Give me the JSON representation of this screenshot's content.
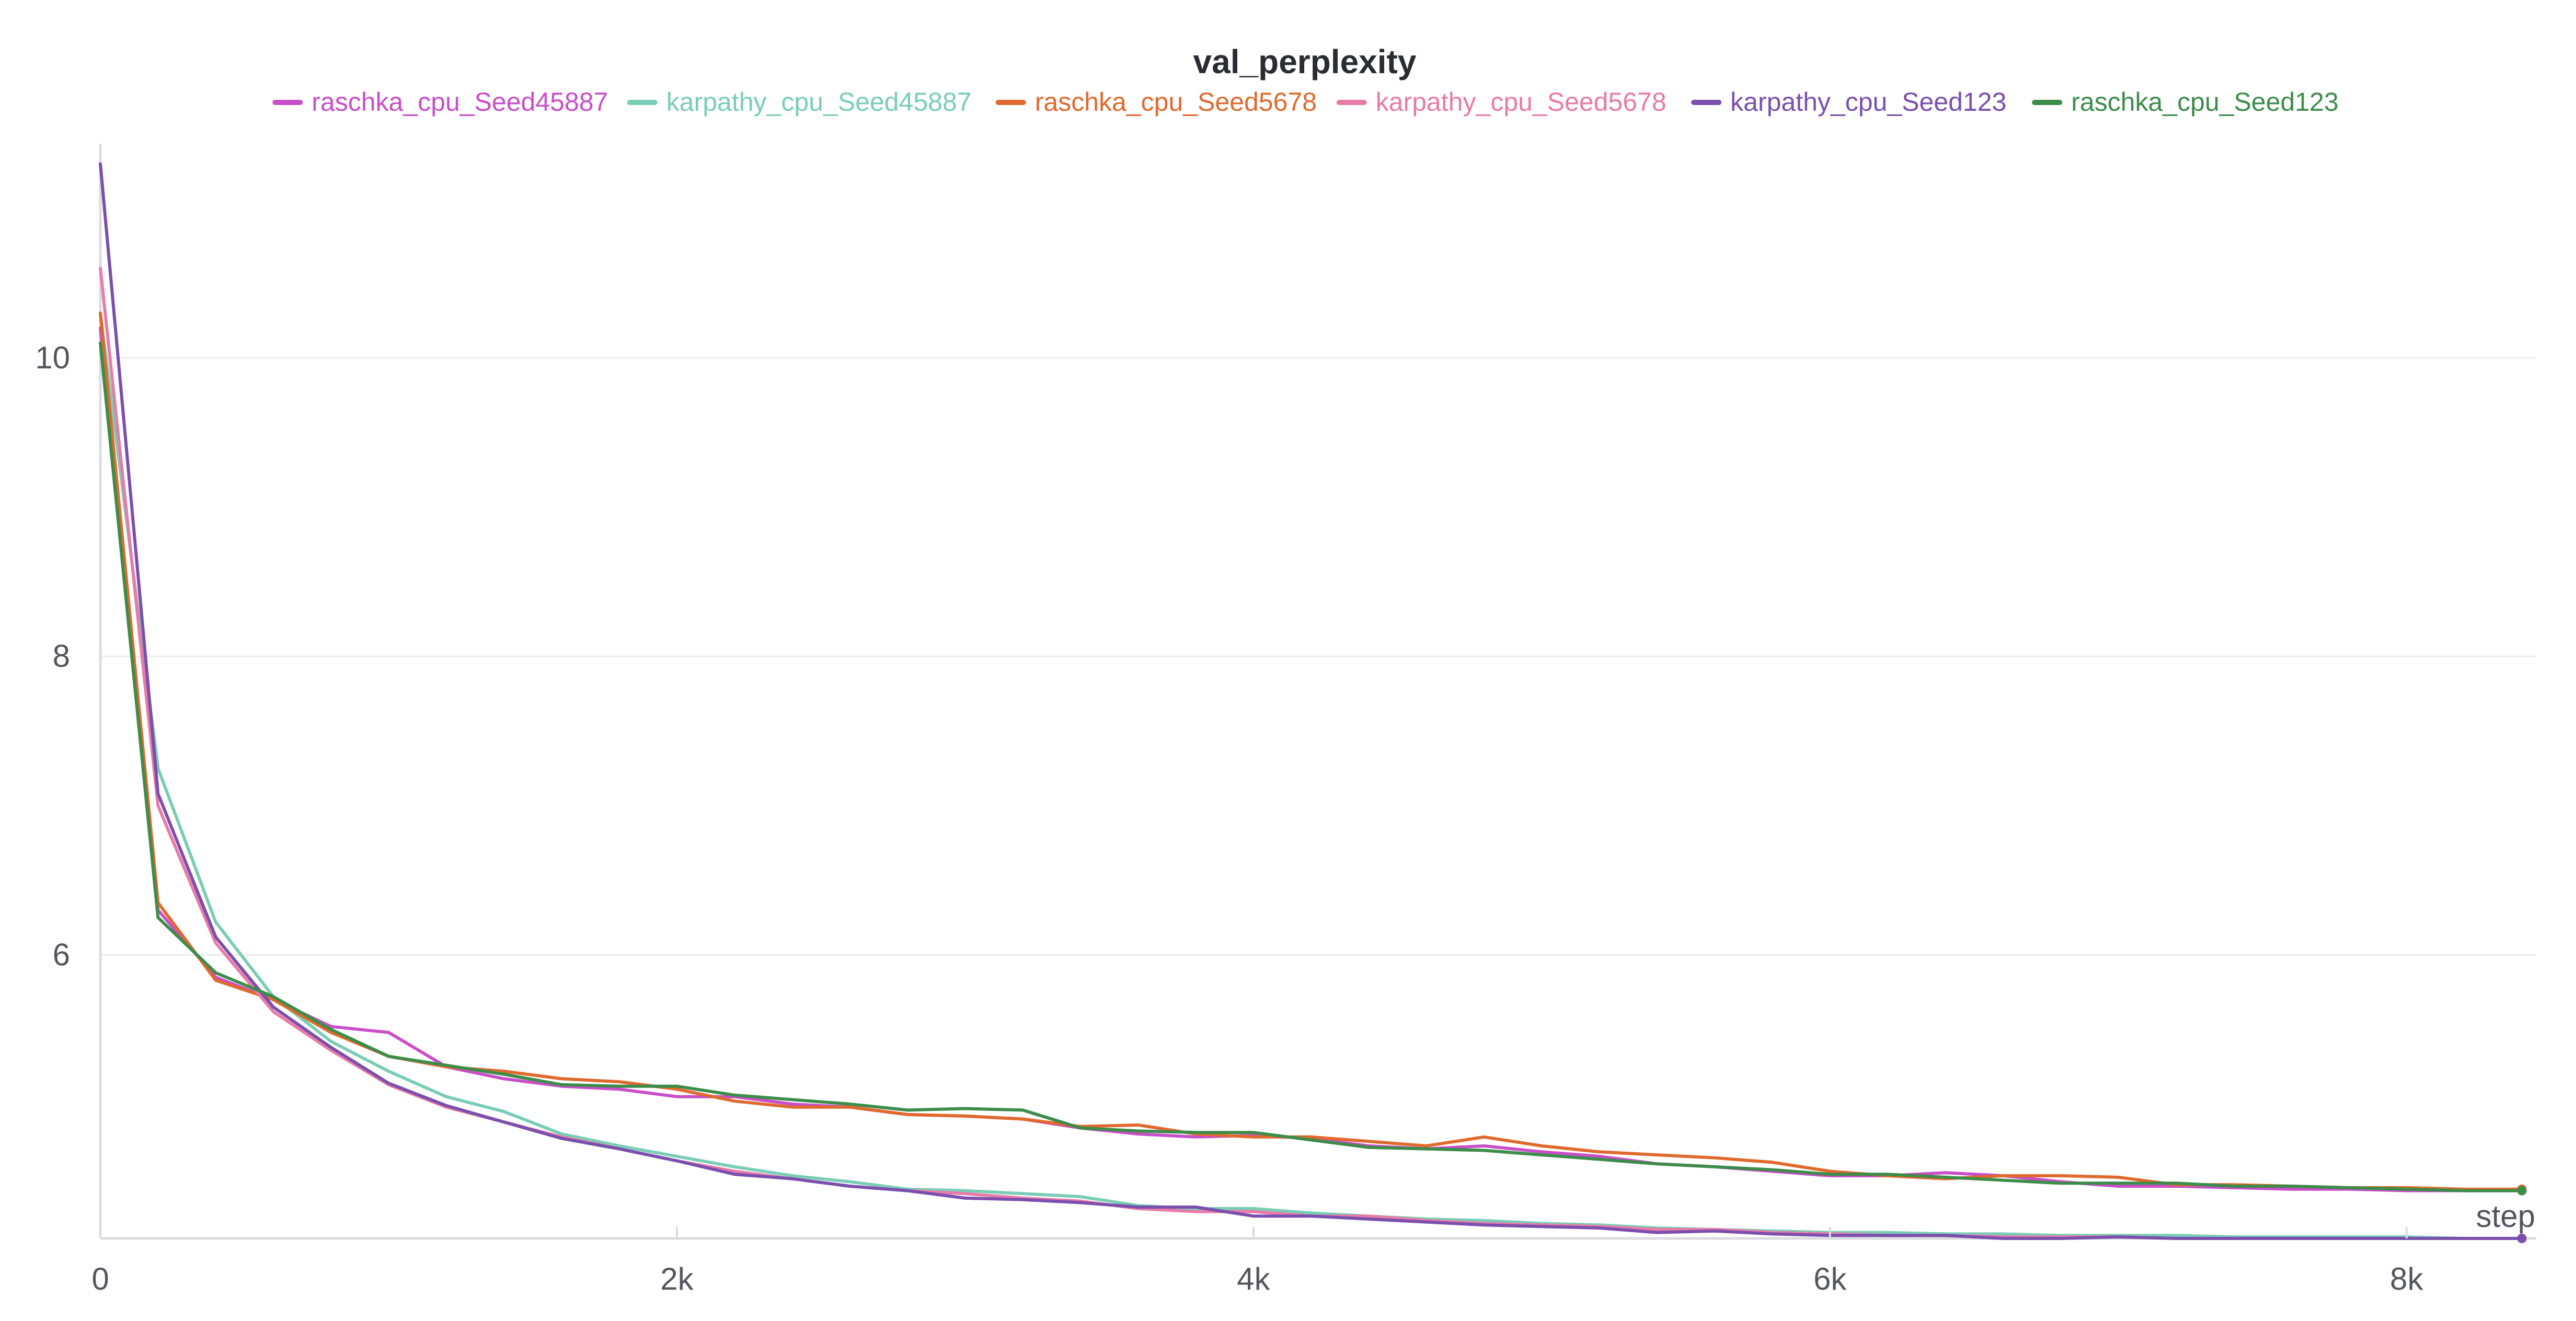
{
  "chart_data": {
    "type": "line",
    "title": "val_perplexity",
    "xlabel": "step",
    "ylabel": "",
    "xlim": [
      0,
      8450
    ],
    "ylim": [
      4.1,
      11.4
    ],
    "x_ticks": [
      0,
      2000,
      4000,
      6000,
      8000
    ],
    "x_tick_labels": [
      "0",
      "2k",
      "4k",
      "6k",
      "8k"
    ],
    "y_ticks": [
      6,
      8,
      10
    ],
    "y_tick_labels": [
      "6",
      "8",
      "10"
    ],
    "grid": true,
    "legend_position": "top",
    "series": [
      {
        "name": "raschka_cpu_Seed45887",
        "color": "#c94ec9",
        "x": [
          0,
          200,
          400,
          600,
          800,
          1000,
          1200,
          1400,
          1600,
          1800,
          2000,
          2200,
          2400,
          2600,
          2800,
          3000,
          3200,
          3400,
          3600,
          3800,
          4000,
          4200,
          4400,
          4600,
          4800,
          5000,
          5200,
          5400,
          5600,
          5800,
          6000,
          6200,
          6400,
          6600,
          6800,
          7000,
          7200,
          7400,
          7600,
          7800,
          8000,
          8200,
          8400
        ],
        "values": [
          10.2,
          6.3,
          5.85,
          5.7,
          5.52,
          5.48,
          5.25,
          5.17,
          5.12,
          5.1,
          5.05,
          5.05,
          5.0,
          4.98,
          4.93,
          4.92,
          4.9,
          4.84,
          4.8,
          4.78,
          4.79,
          4.77,
          4.72,
          4.7,
          4.72,
          4.68,
          4.65,
          4.6,
          4.58,
          4.55,
          4.52,
          4.52,
          4.54,
          4.52,
          4.48,
          4.45,
          4.45,
          4.44,
          4.43,
          4.43,
          4.42,
          4.42,
          4.42
        ]
      },
      {
        "name": "karpathy_cpu_Seed45887",
        "color": "#79cdb6",
        "x": [
          0,
          200,
          400,
          600,
          800,
          1000,
          1200,
          1400,
          1600,
          1800,
          2000,
          2200,
          2400,
          2600,
          2800,
          3000,
          3200,
          3400,
          3600,
          3800,
          4000,
          4200,
          4400,
          4600,
          4800,
          5000,
          5200,
          5400,
          5600,
          5800,
          6000,
          6200,
          6400,
          6600,
          6800,
          7000,
          7200,
          7400,
          7600,
          7800,
          8000,
          8200,
          8400
        ],
        "values": [
          10.3,
          7.25,
          6.22,
          5.72,
          5.42,
          5.22,
          5.05,
          4.95,
          4.8,
          4.72,
          4.65,
          4.58,
          4.52,
          4.48,
          4.43,
          4.42,
          4.4,
          4.38,
          4.32,
          4.3,
          4.3,
          4.27,
          4.25,
          4.23,
          4.22,
          4.2,
          4.19,
          4.17,
          4.16,
          4.15,
          4.14,
          4.14,
          4.13,
          4.13,
          4.12,
          4.12,
          4.12,
          4.11,
          4.11,
          4.11,
          4.11,
          4.1,
          4.1
        ]
      },
      {
        "name": "raschka_cpu_Seed5678",
        "color": "#e0692d",
        "x": [
          0,
          200,
          400,
          600,
          800,
          1000,
          1200,
          1400,
          1600,
          1800,
          2000,
          2200,
          2400,
          2600,
          2800,
          3000,
          3200,
          3400,
          3600,
          3800,
          4000,
          4200,
          4400,
          4600,
          4800,
          5000,
          5200,
          5400,
          5600,
          5800,
          6000,
          6200,
          6400,
          6600,
          6800,
          7000,
          7200,
          7400,
          7600,
          7800,
          8000,
          8200,
          8400
        ],
        "values": [
          10.3,
          6.35,
          5.83,
          5.7,
          5.48,
          5.32,
          5.25,
          5.22,
          5.17,
          5.15,
          5.1,
          5.02,
          4.98,
          4.98,
          4.93,
          4.92,
          4.9,
          4.85,
          4.86,
          4.8,
          4.78,
          4.78,
          4.75,
          4.72,
          4.78,
          4.72,
          4.68,
          4.66,
          4.64,
          4.61,
          4.55,
          4.52,
          4.5,
          4.52,
          4.52,
          4.51,
          4.46,
          4.46,
          4.45,
          4.44,
          4.44,
          4.43,
          4.43
        ]
      },
      {
        "name": "karpathy_cpu_Seed5678",
        "color": "#e87ba8",
        "x": [
          0,
          200,
          400,
          600,
          800,
          1000,
          1200,
          1400,
          1600,
          1800,
          2000,
          2200,
          2400,
          2600,
          2800,
          3000,
          3200,
          3400,
          3600,
          3800,
          4000,
          4200,
          4400,
          4600,
          4800,
          5000,
          5200,
          5400,
          5600,
          5800,
          6000,
          6200,
          6400,
          6600,
          6800,
          7000,
          7200,
          7400,
          7600,
          7800,
          8000,
          8200,
          8400
        ],
        "values": [
          10.6,
          7.0,
          6.08,
          5.62,
          5.36,
          5.13,
          4.98,
          4.88,
          4.78,
          4.7,
          4.62,
          4.55,
          4.5,
          4.45,
          4.42,
          4.4,
          4.37,
          4.35,
          4.3,
          4.28,
          4.28,
          4.25,
          4.25,
          4.22,
          4.2,
          4.19,
          4.18,
          4.16,
          4.16,
          4.14,
          4.13,
          4.12,
          4.12,
          4.11,
          4.11,
          4.11,
          4.1,
          4.1,
          4.1,
          4.1,
          4.1,
          4.1,
          4.1
        ]
      },
      {
        "name": "karpathy_cpu_Seed123",
        "color": "#7a4fad",
        "x": [
          0,
          200,
          400,
          600,
          800,
          1000,
          1200,
          1400,
          1600,
          1800,
          2000,
          2200,
          2400,
          2600,
          2800,
          3000,
          3200,
          3400,
          3600,
          3800,
          4000,
          4200,
          4400,
          4600,
          4800,
          5000,
          5200,
          5400,
          5600,
          5800,
          6000,
          6200,
          6400,
          6600,
          6800,
          7000,
          7200,
          7400,
          7600,
          7800,
          8000,
          8200,
          8400
        ],
        "values": [
          11.3,
          7.08,
          6.12,
          5.65,
          5.38,
          5.14,
          4.99,
          4.88,
          4.77,
          4.7,
          4.62,
          4.53,
          4.5,
          4.45,
          4.42,
          4.37,
          4.36,
          4.34,
          4.31,
          4.31,
          4.25,
          4.25,
          4.23,
          4.21,
          4.19,
          4.18,
          4.17,
          4.14,
          4.15,
          4.13,
          4.12,
          4.12,
          4.12,
          4.1,
          4.1,
          4.11,
          4.1,
          4.1,
          4.1,
          4.1,
          4.1,
          4.1,
          4.1
        ]
      },
      {
        "name": "raschka_cpu_Seed123",
        "color": "#3c8c4a",
        "x": [
          0,
          200,
          400,
          600,
          800,
          1000,
          1200,
          1400,
          1600,
          1800,
          2000,
          2200,
          2400,
          2600,
          2800,
          3000,
          3200,
          3400,
          3600,
          3800,
          4000,
          4200,
          4400,
          4600,
          4800,
          5000,
          5200,
          5400,
          5600,
          5800,
          6000,
          6200,
          6400,
          6600,
          6800,
          7000,
          7200,
          7400,
          7600,
          7800,
          8000,
          8200,
          8400
        ],
        "values": [
          10.1,
          6.25,
          5.88,
          5.72,
          5.5,
          5.32,
          5.26,
          5.2,
          5.13,
          5.12,
          5.12,
          5.06,
          5.03,
          5.0,
          4.96,
          4.97,
          4.96,
          4.84,
          4.82,
          4.81,
          4.81,
          4.76,
          4.71,
          4.7,
          4.69,
          4.66,
          4.63,
          4.6,
          4.58,
          4.56,
          4.53,
          4.53,
          4.51,
          4.49,
          4.47,
          4.47,
          4.47,
          4.45,
          4.45,
          4.44,
          4.43,
          4.42,
          4.42
        ]
      }
    ]
  }
}
